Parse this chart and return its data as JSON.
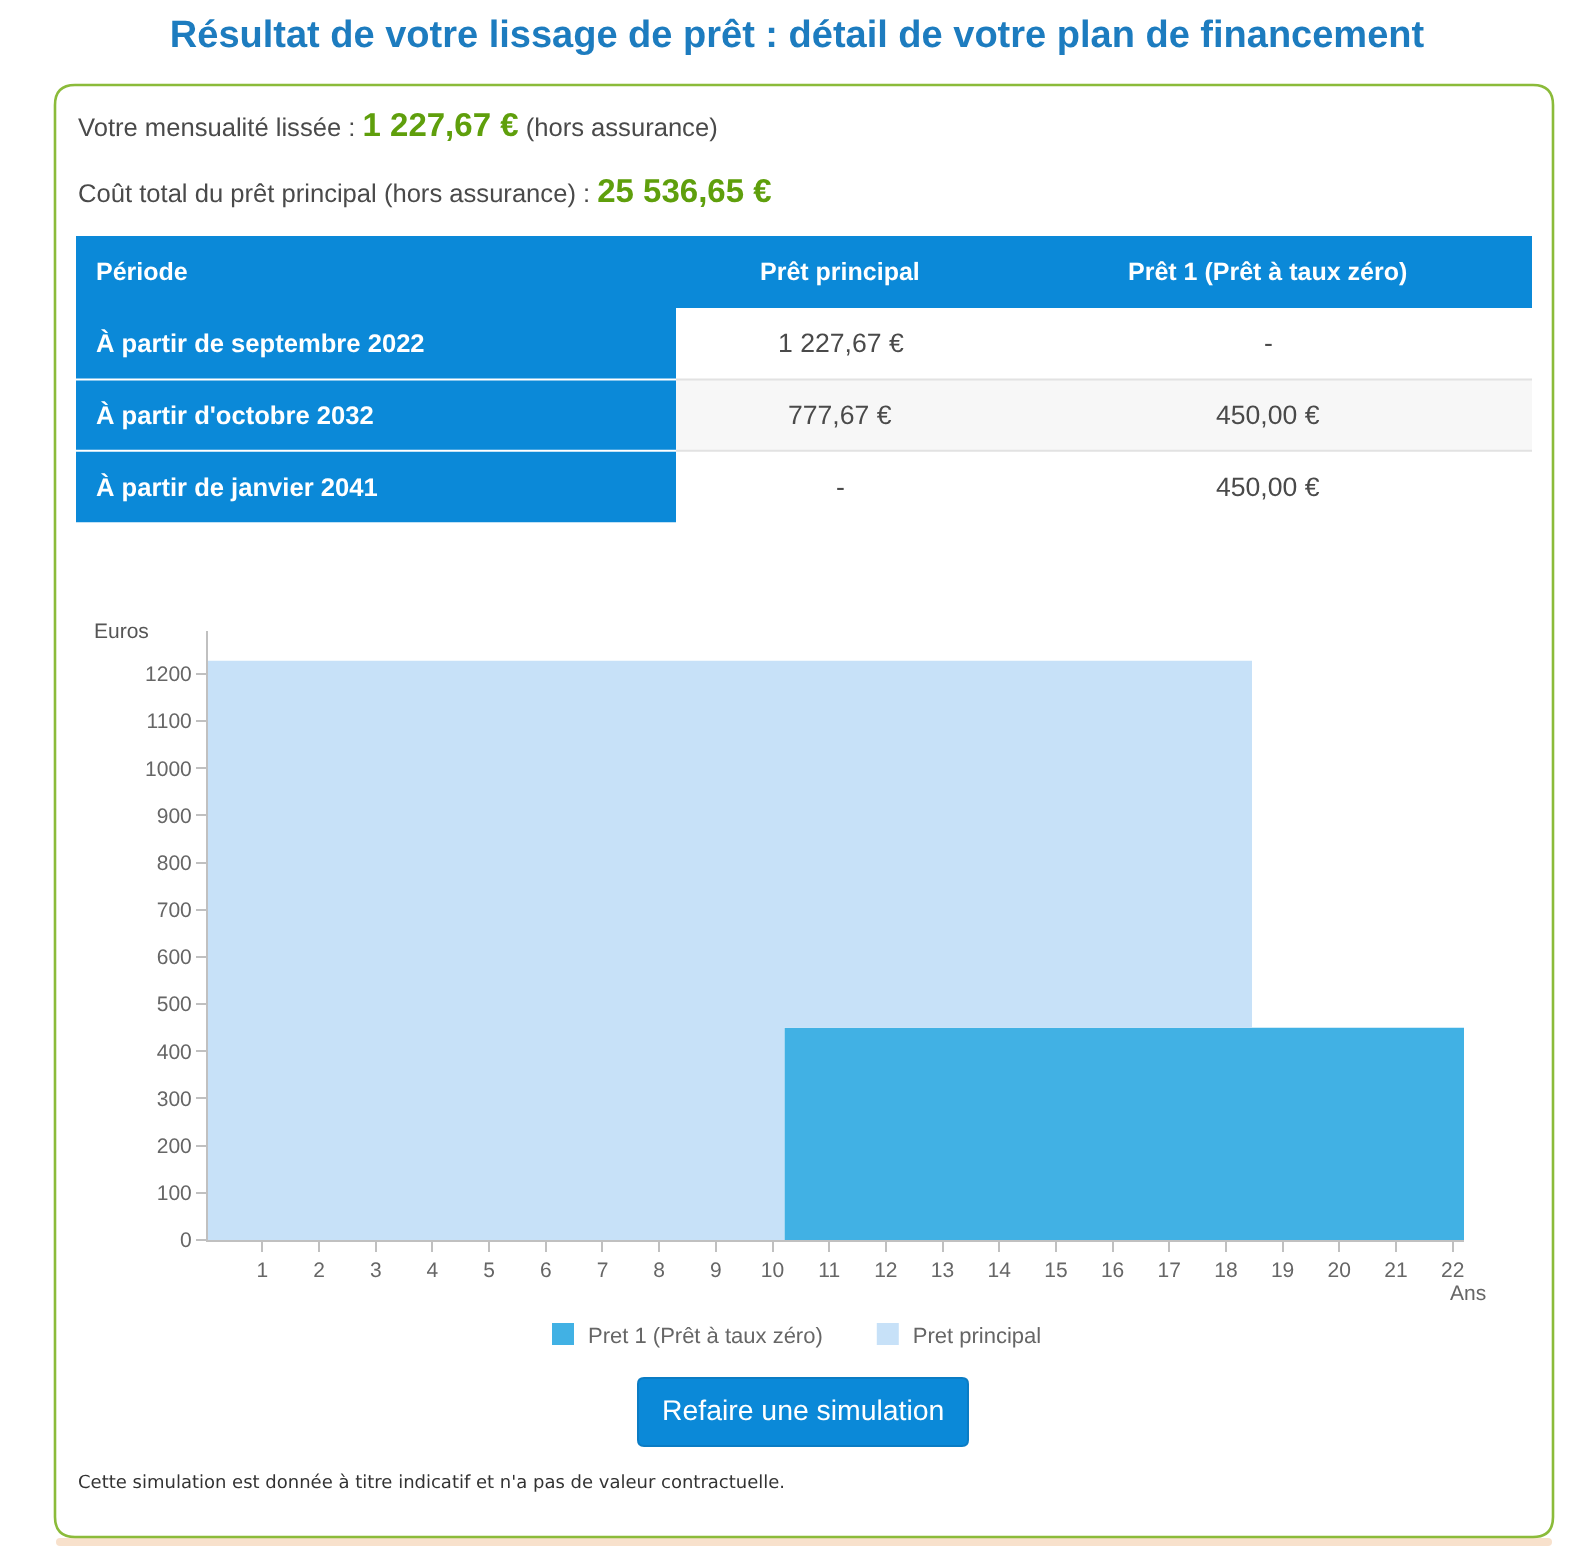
{
  "chart_data": [
    {
      "type": "other",
      "title": "Résultat de votre lissage de prêt : détail de votre plan de financement",
      "annotations": [
        "Votre mensualité lissée :",
        "1 227,67 €",
        "(hors assurance)",
        "Coût total du prêt principal (hors assurance) :",
        "25 536,65 €"
      ],
      "ylabel": "Période",
      "categories": [
        "Prêt principal",
        "Prêt 1 (Prêt à taux zéro)"
      ],
      "y_categories": [
        "À partir de septembre 2022",
        "À partir d'octobre 2032",
        "À partir de janvier 2041"
      ],
      "cell_labels": [
        [
          "1 227,67 €",
          "-"
        ],
        [
          "777,67 €",
          "450,00 €"
        ],
        [
          "-",
          "450,00 €"
        ]
      ]
    },
    {
      "type": "area",
      "stacked": true,
      "xlabel": "Ans",
      "ylabel": "Euros",
      "xlim": [
        0.04,
        22.2
      ],
      "xticks": [
        1,
        2,
        3,
        4,
        5,
        6,
        7,
        8,
        9,
        10,
        11,
        12,
        13,
        14,
        15,
        16,
        17,
        18,
        19,
        20,
        21,
        22
      ],
      "ylim": [
        0,
        1290
      ],
      "yticks": [
        0,
        100,
        200,
        300,
        400,
        500,
        600,
        700,
        800,
        900,
        1000,
        1100,
        1200
      ],
      "legend": "bottom",
      "annotations": [
        "Refaire une simulation",
        "Cette simulation est donnée à titre indicatif et n'a pas de valeur contractuelle."
      ],
      "x": [
        0.04,
        10.21,
        10.21,
        18.46,
        18.46,
        22.2
      ],
      "series": [
        {
          "name": "Pret 1 (Prêt à taux zéro)",
          "color": "#41b1e4",
          "values": [
            null,
            null,
            450,
            450,
            450,
            450
          ]
        },
        {
          "name": "Pret principal",
          "color": "#c7e1f8",
          "values": [
            1227.67,
            1227.67,
            777.67,
            777.67,
            null,
            null
          ]
        }
      ]
    }
  ]
}
